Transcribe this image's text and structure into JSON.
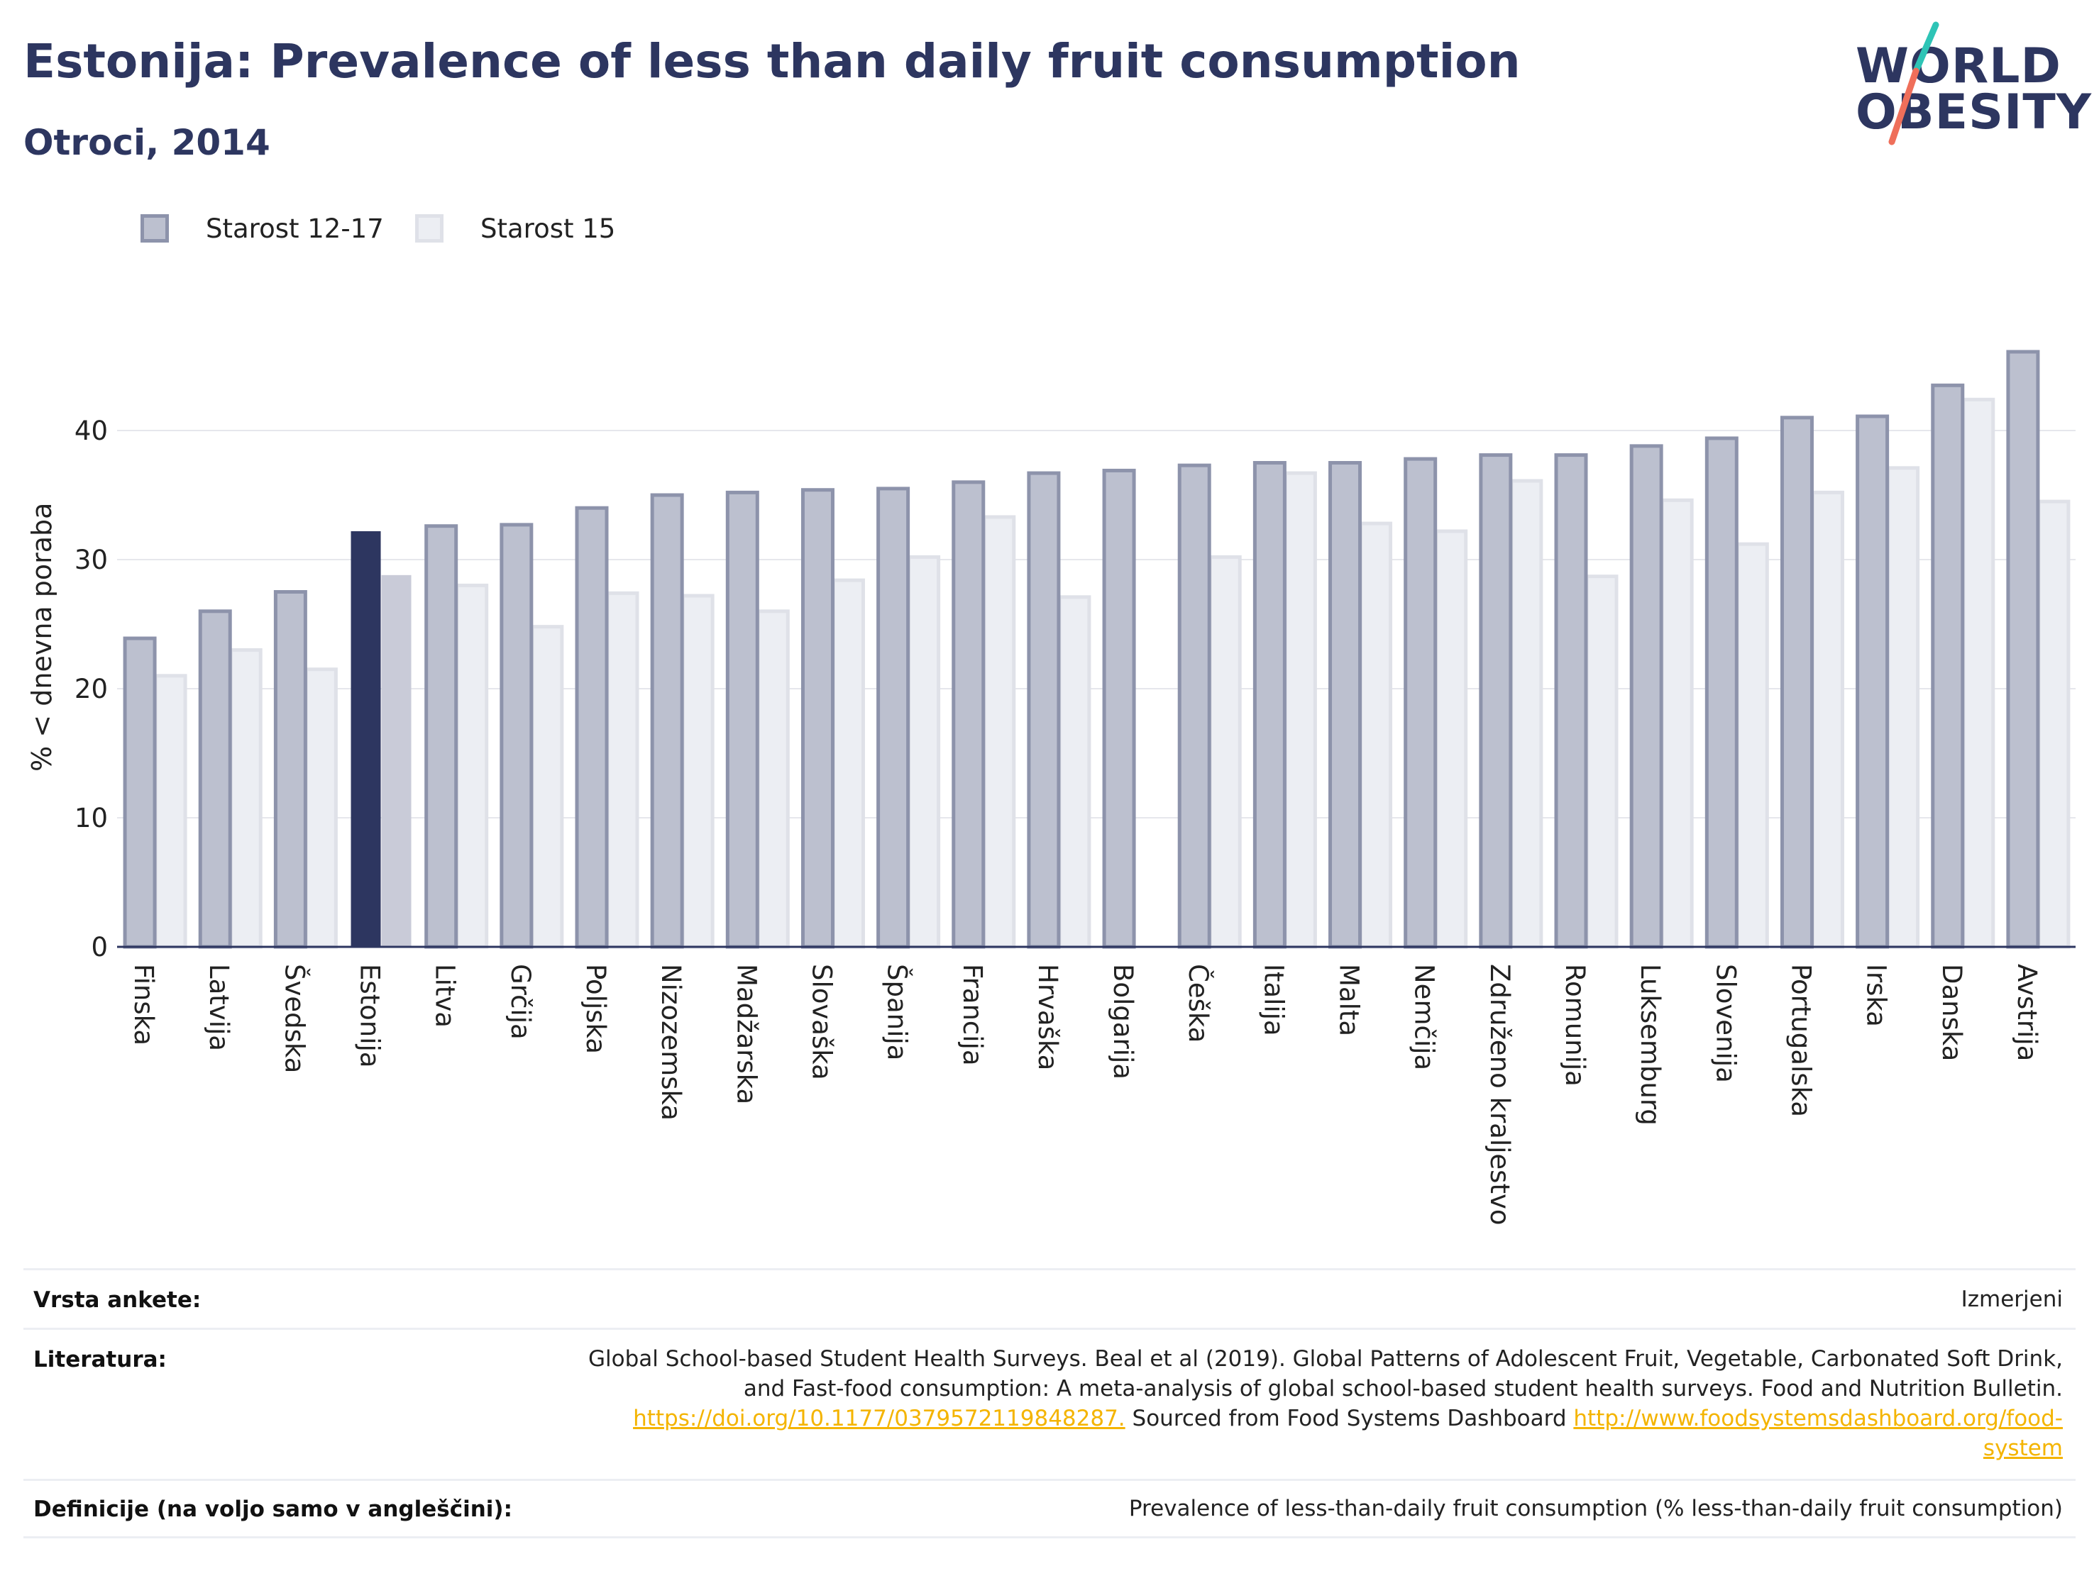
{
  "header": {
    "title": "Estonija: Prevalence of less than daily fruit consumption",
    "subtitle": "Otroci, 2014"
  },
  "logo": {
    "line1": "WORLD",
    "line2": "OBESITY",
    "slash_colors": [
      "#2ec4b6",
      "#ef6f5a"
    ]
  },
  "legend": [
    {
      "label": "Starost 12-17",
      "color": "#bcc0cf",
      "border": "#8d93ab"
    },
    {
      "label": "Starost 15",
      "color": "#eceef3",
      "border": "#dfe1e8"
    }
  ],
  "chart_data": {
    "type": "bar",
    "ylabel": "% < dnevna poraba",
    "ylim": [
      0,
      48
    ],
    "yticks": [
      0,
      10,
      20,
      30,
      40
    ],
    "grid": true,
    "legend_position": "top-left",
    "highlight_category": "Estonija",
    "highlight_colors": [
      "#2d3660",
      "#c9cbd8"
    ],
    "categories": [
      "Finska",
      "Latvija",
      "Švedska",
      "Estonija",
      "Litva",
      "Grčija",
      "Poljska",
      "Nizozemska",
      "Madžarska",
      "Slovaška",
      "Španija",
      "Francija",
      "Hrvaška",
      "Bolgarija",
      "Češka",
      "Italija",
      "Malta",
      "Nemčija",
      "Združeno kraljestvo",
      "Romunija",
      "Luksemburg",
      "Slovenija",
      "Portugalska",
      "Irska",
      "Danska",
      "Avstrija"
    ],
    "series": [
      {
        "name": "Starost 12-17",
        "values": [
          23.9,
          26.0,
          27.5,
          32.2,
          32.6,
          32.7,
          34.0,
          35.0,
          35.2,
          35.4,
          35.5,
          36.0,
          36.7,
          36.9,
          37.3,
          37.5,
          37.5,
          37.8,
          38.1,
          38.1,
          38.8,
          39.4,
          41.0,
          41.1,
          43.5,
          46.1
        ]
      },
      {
        "name": "Starost 15",
        "values": [
          21.0,
          23.0,
          21.5,
          28.8,
          28.0,
          24.8,
          27.4,
          27.2,
          26.0,
          28.4,
          30.2,
          33.3,
          27.1,
          null,
          30.2,
          36.7,
          32.8,
          32.2,
          36.1,
          28.7,
          34.6,
          31.2,
          35.2,
          37.1,
          42.4,
          34.5
        ]
      }
    ]
  },
  "footer": {
    "survey_type_label": "Vrsta ankete:",
    "survey_type_value": "Izmerjeni",
    "references_label": "Literatura:",
    "references_line1": "Global School-based Student Health Surveys. Beal et al (2019). Global Patterns of Adolescent Fruit, Vegetable, Carbonated Soft Drink,",
    "references_line2": "and Fast-food consumption: A meta-analysis of global school-based student health surveys. Food and Nutrition Bulletin.",
    "references_link1": "https://doi.org/10.1177/0379572119848287.",
    "references_mid": " Sourced from Food Systems Dashboard ",
    "references_link2a": "http://www.foodsystemsdashboard.org/food-",
    "references_link2b": "system",
    "definitions_label": "Definicije (na voljo samo v angleščini):",
    "definitions_value": "Prevalence of less-than-daily fruit consumption (% less-than-daily fruit consumption)"
  }
}
